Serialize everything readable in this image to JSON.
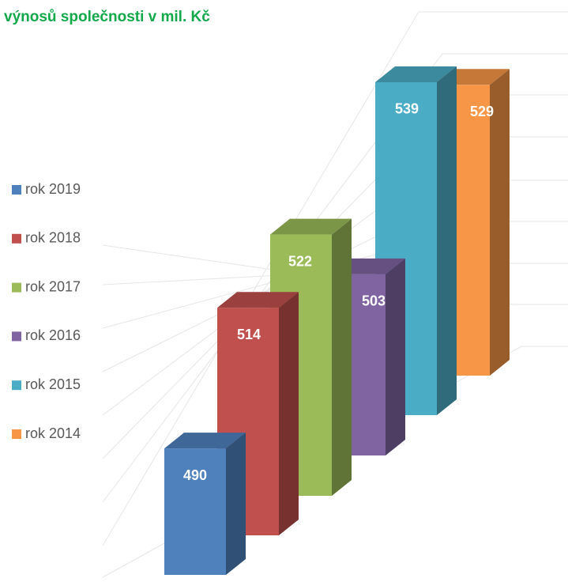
{
  "chart_data": {
    "type": "bar",
    "title": "výnosů společnosti v mil. Kč",
    "ylim": [
      460,
      545
    ],
    "series": [
      {
        "name": "rok 2019",
        "color": "#4f81bd",
        "values": [
          490
        ]
      },
      {
        "name": "rok 2018",
        "color": "#c0504d",
        "values": [
          514
        ]
      },
      {
        "name": "rok 2017",
        "color": "#9bbb59",
        "values": [
          522
        ]
      },
      {
        "name": "rok 2016",
        "color": "#8064a2",
        "values": [
          503
        ]
      },
      {
        "name": "rok 2015",
        "color": "#4bacc6",
        "values": [
          539
        ]
      },
      {
        "name": "rok 2014",
        "color": "#f79646",
        "values": [
          529
        ]
      }
    ]
  }
}
